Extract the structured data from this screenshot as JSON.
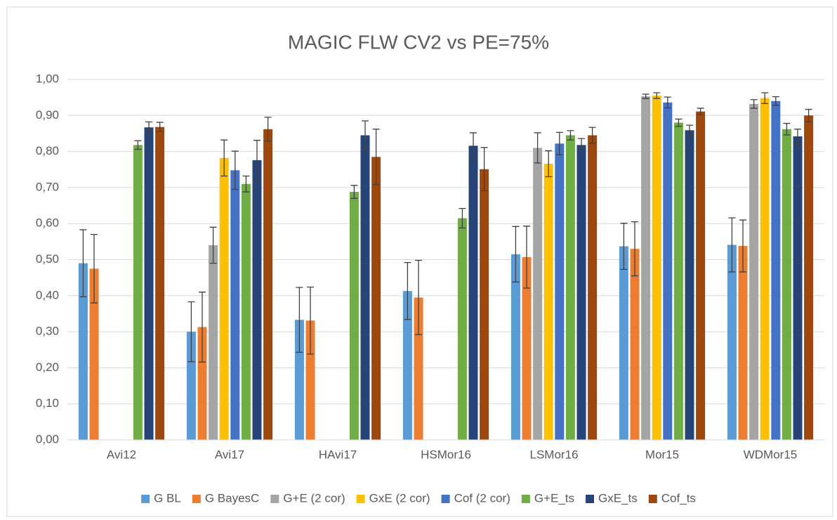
{
  "chart_data": {
    "type": "bar",
    "title": "MAGIC FLW CV2 vs PE=75%",
    "categories": [
      "Avi12",
      "Avi17",
      "HAvi17",
      "HSMor16",
      "LSMor16",
      "Mor15",
      "WDMor15"
    ],
    "ylim": [
      0,
      1
    ],
    "yticks": [
      {
        "value": 0,
        "label": "0,00"
      },
      {
        "value": 0.1,
        "label": "0,10"
      },
      {
        "value": 0.2,
        "label": "0,20"
      },
      {
        "value": 0.3,
        "label": "0,30"
      },
      {
        "value": 0.4,
        "label": "0,40"
      },
      {
        "value": 0.5,
        "label": "0,50"
      },
      {
        "value": 0.6,
        "label": "0,60"
      },
      {
        "value": 0.7,
        "label": "0,70"
      },
      {
        "value": 0.8,
        "label": "0,80"
      },
      {
        "value": 0.9,
        "label": "0,90"
      },
      {
        "value": 1,
        "label": "1,00"
      }
    ],
    "grid": true,
    "legend": "bottom",
    "series": [
      {
        "name": "G BL",
        "color": "#5b9bd5",
        "values": [
          0.49,
          0.3,
          0.333,
          0.413,
          0.515,
          0.537,
          0.541
        ],
        "errors": [
          0.093,
          0.083,
          0.09,
          0.079,
          0.077,
          0.064,
          0.075
        ]
      },
      {
        "name": "G BayesC",
        "color": "#ed7d31",
        "values": [
          0.475,
          0.313,
          0.331,
          0.395,
          0.507,
          0.53,
          0.538
        ],
        "errors": [
          0.095,
          0.097,
          0.093,
          0.103,
          0.086,
          0.075,
          0.072
        ]
      },
      {
        "name": "G+E (2 cor)",
        "color": "#a5a5a5",
        "values": [
          null,
          0.54,
          null,
          null,
          0.81,
          0.953,
          0.932
        ],
        "errors": [
          null,
          0.05,
          null,
          null,
          0.042,
          0.006,
          0.012
        ]
      },
      {
        "name": "GxE (2 cor)",
        "color": "#ffc000",
        "values": [
          null,
          0.782,
          null,
          null,
          0.766,
          0.955,
          0.948
        ],
        "errors": [
          null,
          0.05,
          null,
          null,
          0.036,
          0.008,
          0.015
        ]
      },
      {
        "name": "Cof (2 cor)",
        "color": "#4472c4",
        "values": [
          null,
          0.748,
          null,
          null,
          0.822,
          0.936,
          0.94
        ],
        "errors": [
          null,
          0.053,
          null,
          null,
          0.031,
          0.015,
          0.012
        ]
      },
      {
        "name": "G+E_ts",
        "color": "#70ad47",
        "values": [
          0.818,
          0.71,
          0.688,
          0.615,
          0.845,
          0.88,
          0.862
        ],
        "errors": [
          0.012,
          0.022,
          0.018,
          0.027,
          0.013,
          0.01,
          0.016
        ]
      },
      {
        "name": "GxE_ts",
        "color": "#264478",
        "values": [
          0.867,
          0.776,
          0.845,
          0.816,
          0.818,
          0.859,
          0.842
        ],
        "errors": [
          0.015,
          0.055,
          0.04,
          0.036,
          0.018,
          0.014,
          0.02
        ]
      },
      {
        "name": "Cof_ts",
        "color": "#9e480e",
        "values": [
          0.868,
          0.862,
          0.785,
          0.751,
          0.845,
          0.911,
          0.9
        ],
        "errors": [
          0.013,
          0.033,
          0.077,
          0.06,
          0.022,
          0.009,
          0.017
        ]
      }
    ]
  }
}
